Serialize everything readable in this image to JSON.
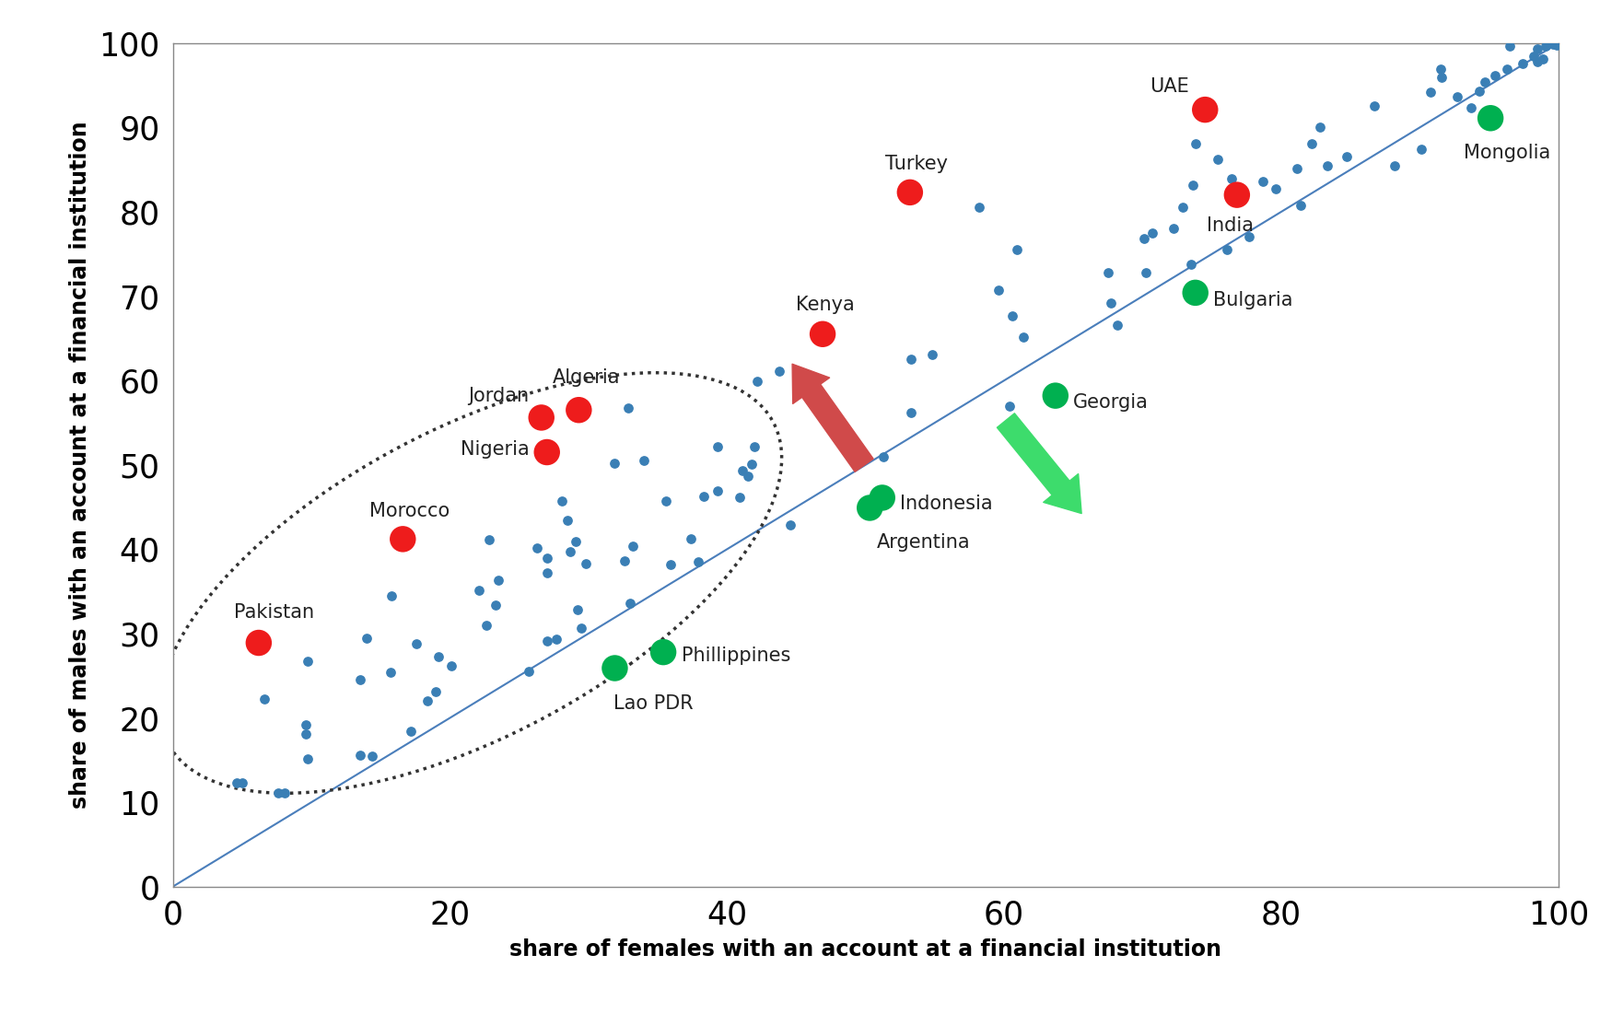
{
  "chart_data": {
    "type": "scatter",
    "x_label": "share of females with an account at a financial institution",
    "y_label": "share of males with an account at a financial institution",
    "xlim": [
      0,
      100
    ],
    "ylim": [
      0,
      100
    ],
    "xticks": [
      0,
      20,
      40,
      60,
      80,
      100
    ],
    "yticks": [
      0,
      10,
      20,
      30,
      40,
      50,
      60,
      70,
      80,
      90,
      100
    ],
    "grid": false,
    "color": "#3a7fb5",
    "x": [
      4.6,
      5.0,
      6.6,
      7.6,
      8.1,
      9.7,
      9.6,
      9.6,
      9.7,
      13.5,
      14.4,
      13.5,
      14.0,
      15.8,
      15.7,
      17.2,
      17.6,
      18.4,
      19.0,
      19.2,
      20.1,
      22.1,
      22.6,
      22.8,
      23.3,
      23.5,
      25.7,
      26.3,
      27.0,
      27.0,
      27.0,
      27.7,
      28.1,
      28.5,
      28.7,
      29.1,
      29.2,
      29.5,
      29.8,
      31.9,
      32.6,
      32.9,
      33.0,
      33.2,
      34.0,
      35.6,
      35.9,
      37.4,
      37.9,
      38.3,
      39.3,
      39.3,
      40.9,
      41.1,
      41.5,
      41.8,
      42.0,
      42.2,
      43.8,
      44.6,
      51.3,
      53.3,
      53.3,
      54.8,
      58.2,
      59.6,
      60.4,
      60.6,
      60.9,
      61.4,
      67.5,
      67.7,
      68.2,
      70.2,
      70.1,
      70.7,
      72.2,
      72.9,
      73.5,
      73.6,
      73.8,
      75.4,
      76.1,
      76.4,
      77.7,
      78.7,
      79.6,
      81.1,
      81.4,
      82.2,
      82.8,
      83.3,
      84.7,
      86.7,
      88.2,
      90.1,
      90.8,
      91.5,
      91.6,
      92.7,
      93.7,
      94.3,
      94.7,
      95.4,
      96.3,
      96.5,
      97.4,
      98.2,
      98.5,
      99.1,
      99.6,
      99.9,
      98.5,
      98.9
    ],
    "y": [
      12.3,
      12.3,
      22.2,
      11.1,
      11.1,
      26.7,
      19.2,
      18.1,
      15.2,
      15.6,
      15.5,
      24.5,
      29.4,
      34.5,
      25.4,
      18.4,
      28.8,
      22.0,
      23.1,
      27.3,
      26.2,
      35.1,
      31.0,
      41.1,
      33.4,
      36.3,
      25.5,
      40.1,
      38.9,
      37.2,
      29.1,
      29.3,
      45.7,
      43.4,
      39.7,
      40.9,
      32.8,
      30.6,
      38.3,
      50.2,
      38.6,
      56.7,
      33.6,
      40.4,
      50.5,
      45.7,
      38.2,
      41.2,
      38.5,
      46.3,
      46.9,
      52.2,
      46.2,
      49.3,
      48.7,
      50.1,
      52.2,
      59.9,
      61.1,
      42.9,
      51.0,
      62.5,
      56.2,
      63.1,
      80.5,
      70.7,
      57.0,
      67.7,
      75.5,
      65.1,
      72.8,
      69.2,
      66.6,
      72.8,
      76.8,
      77.5,
      78.0,
      80.5,
      73.8,
      83.2,
      88.1,
      86.2,
      75.5,
      83.9,
      77.0,
      83.6,
      82.7,
      85.1,
      80.8,
      88.1,
      90.0,
      85.5,
      86.5,
      92.5,
      85.5,
      87.4,
      94.2,
      96.9,
      95.9,
      93.6,
      92.3,
      94.3,
      95.4,
      96.1,
      96.9,
      99.6,
      97.6,
      98.4,
      99.3,
      99.6,
      99.9,
      99.8,
      97.8,
      98.1
    ],
    "labeled_points": [
      {
        "label": "Pakistan",
        "x": 6.2,
        "y": 28.9,
        "color": "#ee1c1c"
      },
      {
        "label": "Morocco",
        "x": 16.6,
        "y": 41.2,
        "color": "#ee1c1c"
      },
      {
        "label": "Nigeria",
        "x": 27.0,
        "y": 51.5,
        "color": "#ee1c1c"
      },
      {
        "label": "Jordan",
        "x": 26.6,
        "y": 55.6,
        "color": "#ee1c1c"
      },
      {
        "label": "Algeria",
        "x": 29.3,
        "y": 56.5,
        "color": "#ee1c1c"
      },
      {
        "label": "Kenya",
        "x": 46.9,
        "y": 65.5,
        "color": "#ee1c1c"
      },
      {
        "label": "Turkey",
        "x": 53.2,
        "y": 82.3,
        "color": "#ee1c1c"
      },
      {
        "label": "UAE",
        "x": 74.5,
        "y": 92.1,
        "color": "#ee1c1c"
      },
      {
        "label": "India",
        "x": 76.8,
        "y": 82.0,
        "color": "#ee1c1c"
      },
      {
        "label": "Lao PDR",
        "x": 31.9,
        "y": 25.9,
        "color": "#00b050"
      },
      {
        "label": "Phillippines",
        "x": 35.4,
        "y": 27.8,
        "color": "#00b050"
      },
      {
        "label": "Argentina",
        "x": 50.3,
        "y": 44.9,
        "color": "#00b050"
      },
      {
        "label": "Indonesia",
        "x": 51.2,
        "y": 46.1,
        "color": "#00b050"
      },
      {
        "label": "Georgia",
        "x": 63.7,
        "y": 58.2,
        "color": "#00b050"
      },
      {
        "label": "Bulgaria",
        "x": 73.8,
        "y": 70.4,
        "color": "#00b050"
      },
      {
        "label": "Mongolia",
        "x": 95.1,
        "y": 91.1,
        "color": "#00b050"
      }
    ]
  }
}
